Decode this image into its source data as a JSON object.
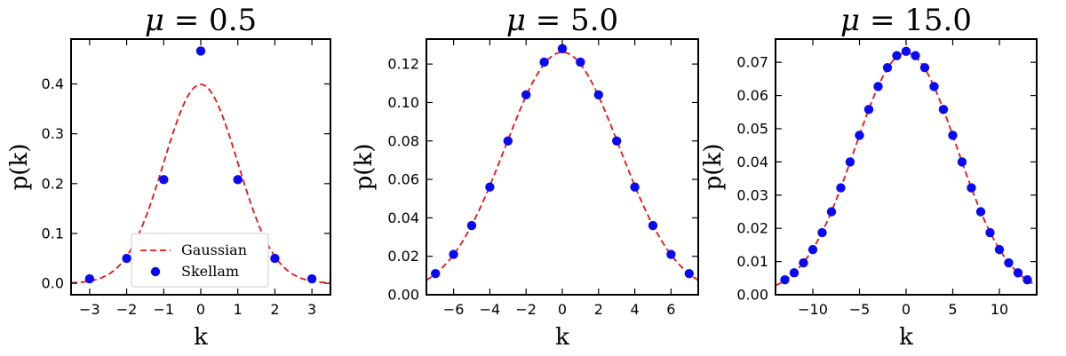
{
  "colors": {
    "gaussian": "#ee1111",
    "skellam": "#0a0af0"
  },
  "chart_data": [
    {
      "type": "scatter",
      "title_symbol": "μ",
      "title_value": "= 0.5",
      "xlabel": "k",
      "ylabel": "p(k)",
      "xlim": [
        -3.5,
        3.5
      ],
      "ylim": [
        -0.023,
        0.49
      ],
      "xticks": [
        -3,
        -2,
        -1,
        0,
        1,
        2,
        3
      ],
      "xtick_labels": [
        "−3",
        "−2",
        "−1",
        "0",
        "1",
        "2",
        "3"
      ],
      "yticks": [
        0.0,
        0.1,
        0.2,
        0.3,
        0.4
      ],
      "ytick_labels": [
        "0.0",
        "0.1",
        "0.2",
        "0.3",
        "0.4"
      ],
      "legend": {
        "placement": "lower-center",
        "entries": [
          "Gaussian",
          "Skellam"
        ]
      },
      "series": [
        {
          "name": "Gaussian",
          "kind": "line",
          "sigma": 1.0
        },
        {
          "name": "Skellam",
          "kind": "scatter",
          "x": [
            -3,
            -2,
            -1,
            0,
            1,
            2,
            3
          ],
          "y": [
            0.009,
            0.05,
            0.208,
            0.466,
            0.208,
            0.05,
            0.009
          ]
        }
      ]
    },
    {
      "type": "scatter",
      "title_symbol": "μ",
      "title_value": "= 5.0",
      "xlabel": "k",
      "ylabel": "p(k)",
      "xlim": [
        -7.5,
        7.5
      ],
      "ylim": [
        0.0,
        0.133
      ],
      "xticks": [
        -6,
        -4,
        -2,
        0,
        2,
        4,
        6
      ],
      "xtick_labels": [
        "−6",
        "−4",
        "−2",
        "0",
        "2",
        "4",
        "6"
      ],
      "yticks": [
        0.0,
        0.02,
        0.04,
        0.06,
        0.08,
        0.1,
        0.12
      ],
      "ytick_labels": [
        "0.00",
        "0.02",
        "0.04",
        "0.06",
        "0.08",
        "0.10",
        "0.12"
      ],
      "series": [
        {
          "name": "Gaussian",
          "kind": "line",
          "sigma": 3.162
        },
        {
          "name": "Skellam",
          "kind": "scatter",
          "x": [
            -7,
            -6,
            -5,
            -4,
            -3,
            -2,
            -1,
            0,
            1,
            2,
            3,
            4,
            5,
            6,
            7
          ],
          "y": [
            0.011,
            0.021,
            0.036,
            0.056,
            0.08,
            0.104,
            0.121,
            0.128,
            0.121,
            0.104,
            0.08,
            0.056,
            0.036,
            0.021,
            0.011
          ]
        }
      ]
    },
    {
      "type": "scatter",
      "title_symbol": "μ",
      "title_value": "= 15.0",
      "xlabel": "k",
      "ylabel": "p(k)",
      "xlim": [
        -14,
        14
      ],
      "ylim": [
        0.0,
        0.077
      ],
      "xticks": [
        -10,
        -5,
        0,
        5,
        10
      ],
      "xtick_labels": [
        "−10",
        "−5",
        "0",
        "5",
        "10"
      ],
      "yticks": [
        0.0,
        0.01,
        0.02,
        0.03,
        0.04,
        0.05,
        0.06,
        0.07
      ],
      "ytick_labels": [
        "0.00",
        "0.01",
        "0.02",
        "0.03",
        "0.04",
        "0.05",
        "0.06",
        "0.07"
      ],
      "series": [
        {
          "name": "Gaussian",
          "kind": "line",
          "sigma": 5.477
        },
        {
          "name": "Skellam",
          "kind": "scatter",
          "x": [
            -13,
            -12,
            -11,
            -10,
            -9,
            -8,
            -7,
            -6,
            -5,
            -4,
            -3,
            -2,
            -1,
            0,
            1,
            2,
            3,
            4,
            5,
            6,
            7,
            8,
            9,
            10,
            11,
            12,
            13
          ],
          "y": [
            0.0045,
            0.0066,
            0.0096,
            0.0136,
            0.0187,
            0.025,
            0.0322,
            0.04,
            0.048,
            0.0558,
            0.0627,
            0.0684,
            0.072,
            0.0733,
            0.072,
            0.0684,
            0.0627,
            0.0558,
            0.048,
            0.04,
            0.0322,
            0.025,
            0.0187,
            0.0136,
            0.0096,
            0.0066,
            0.0045
          ]
        }
      ]
    }
  ]
}
